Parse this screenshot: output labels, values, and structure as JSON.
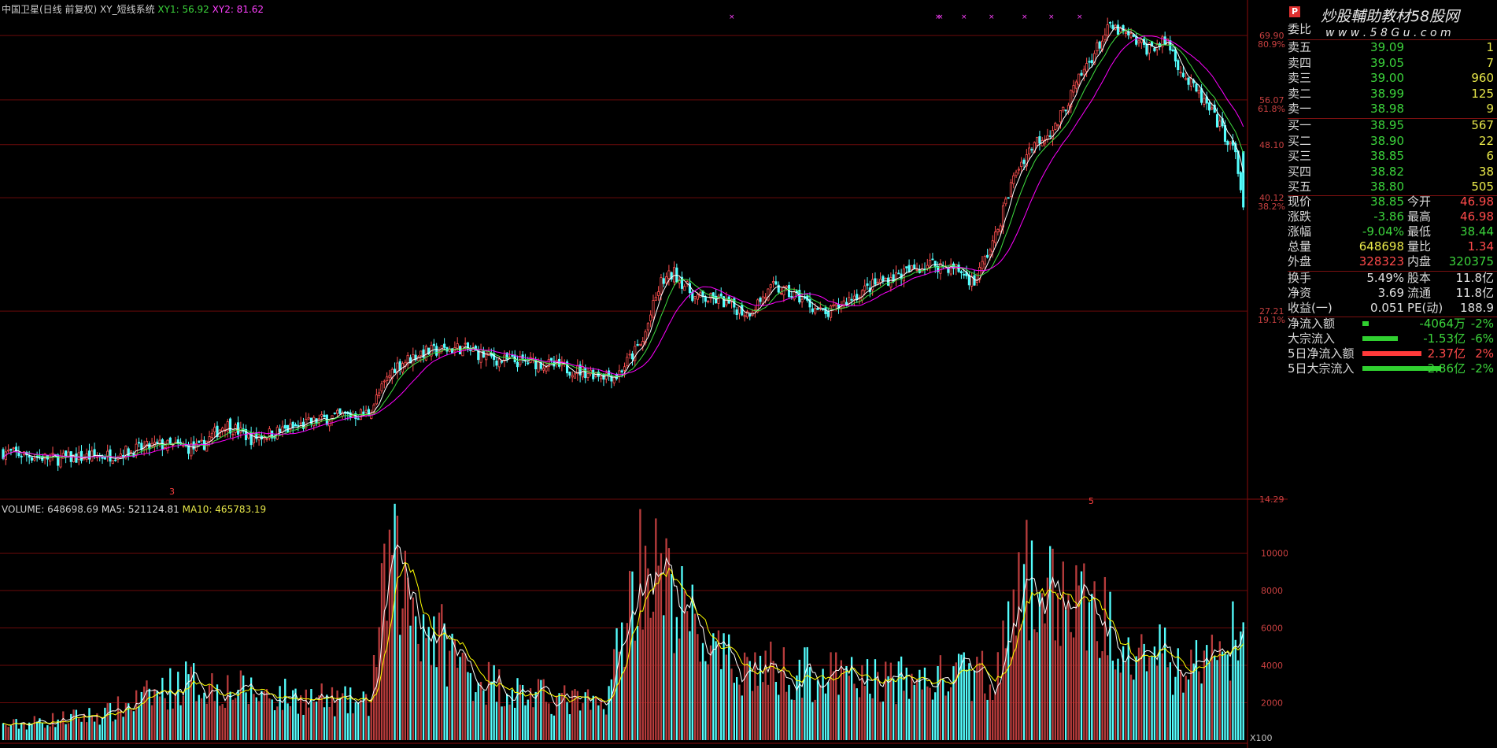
{
  "header": {
    "stock_name": "中国卫星(日线 前复权)",
    "indicator": "XY_短线系统",
    "xy1_label": "XY1: 56.92",
    "xy2_label": "XY2: 81.62"
  },
  "volume_header": {
    "title": "VOLUME: 648698.69",
    "ma5": "MA5: 521124.81",
    "ma10": "MA10: 465783.19"
  },
  "price_axis": [
    {
      "value": "69.90",
      "pct": "80.9%"
    },
    {
      "value": "56.07",
      "pct": "61.8%"
    },
    {
      "value": "48.10",
      "pct": ""
    },
    {
      "value": "40.12",
      "pct": "38.2%"
    },
    {
      "value": "27.21",
      "pct": "19.1%"
    },
    {
      "value": "14.29",
      "pct": ""
    }
  ],
  "volume_axis": [
    "10000",
    "8000",
    "6000",
    "4000",
    "2000"
  ],
  "volume_unit": "X100",
  "markers": {
    "bottom_left": "3",
    "bottom_right": "5"
  },
  "panel": {
    "logo": "P",
    "watermark": "炒股輔助教材58股网",
    "watermark_url": "w w w . 5 8 G u . c o m",
    "ratio_label": "委比",
    "asks": [
      {
        "label": "卖五",
        "price": "39.09",
        "vol": "1"
      },
      {
        "label": "卖四",
        "price": "39.05",
        "vol": "7"
      },
      {
        "label": "卖三",
        "price": "39.00",
        "vol": "960"
      },
      {
        "label": "卖二",
        "price": "38.99",
        "vol": "125"
      },
      {
        "label": "卖一",
        "price": "38.98",
        "vol": "9"
      }
    ],
    "bids": [
      {
        "label": "买一",
        "price": "38.95",
        "vol": "567"
      },
      {
        "label": "买二",
        "price": "38.90",
        "vol": "22"
      },
      {
        "label": "买三",
        "price": "38.85",
        "vol": "6"
      },
      {
        "label": "买四",
        "price": "38.82",
        "vol": "38"
      },
      {
        "label": "买五",
        "price": "38.80",
        "vol": "505"
      }
    ],
    "quote": [
      {
        "l1": "现价",
        "v1": "38.85",
        "c1": "green",
        "l2": "今开",
        "v2": "46.98",
        "c2": "red"
      },
      {
        "l1": "涨跌",
        "v1": "-3.86",
        "c1": "green",
        "l2": "最高",
        "v2": "46.98",
        "c2": "red"
      },
      {
        "l1": "涨幅",
        "v1": "-9.04%",
        "c1": "green",
        "l2": "最低",
        "v2": "38.44",
        "c2": "green"
      },
      {
        "l1": "总量",
        "v1": "648698",
        "c1": "yellow",
        "l2": "量比",
        "v2": "1.34",
        "c2": "red"
      },
      {
        "l1": "外盘",
        "v1": "328323",
        "c1": "red",
        "l2": "内盘",
        "v2": "320375",
        "c2": "green"
      }
    ],
    "fund": [
      {
        "l1": "换手",
        "v1": "5.49%",
        "l2": "股本",
        "v2": "11.8亿"
      },
      {
        "l1": "净资",
        "v1": "3.69",
        "l2": "流通",
        "v2": "11.8亿"
      },
      {
        "l1": "收益(一)",
        "v1": "0.051",
        "l2": "PE(动)",
        "v2": "188.9"
      }
    ],
    "flows": [
      {
        "label": "净流入额",
        "value": "-4064万",
        "pct": "-2%",
        "color": "green",
        "bar": 0.08
      },
      {
        "label": "大宗流入",
        "value": "-1.53亿",
        "pct": "-6%",
        "color": "green",
        "bar": 0.45
      },
      {
        "label": "5日净流入额",
        "value": "2.37亿",
        "pct": "2%",
        "color": "red",
        "bar": 0.75
      },
      {
        "label": "5日大宗流入",
        "value": "-2.86亿",
        "pct": "-2%",
        "color": "green",
        "bar": 1.0
      }
    ]
  },
  "colors": {
    "up": "#ff5050",
    "up_vol": "#b83c3c",
    "down": "#54ffff",
    "ma1": "#ffffff",
    "ma2": "#ffff00",
    "ma3": "#ff00ff",
    "grid": "#6a0a0a",
    "axis": "#8b0d0d"
  },
  "chart_data": {
    "type": "candlestick",
    "price_range": [
      14.29,
      74.0
    ],
    "volume_range": [
      0,
      12000
    ],
    "anchors": [
      [
        0,
        16.8
      ],
      [
        20,
        16.4
      ],
      [
        40,
        16.6
      ],
      [
        60,
        17.2
      ],
      [
        75,
        17.0
      ],
      [
        85,
        18.5
      ],
      [
        95,
        17.6
      ],
      [
        110,
        18.2
      ],
      [
        125,
        18.9
      ],
      [
        140,
        19.2
      ],
      [
        150,
        22.5
      ],
      [
        160,
        23.6
      ],
      [
        175,
        24.0
      ],
      [
        190,
        23.0
      ],
      [
        205,
        22.8
      ],
      [
        220,
        22.2
      ],
      [
        235,
        21.8
      ],
      [
        245,
        24.5
      ],
      [
        252,
        30.0
      ],
      [
        257,
        31.0
      ],
      [
        265,
        28.5
      ],
      [
        275,
        28.2
      ],
      [
        285,
        27.0
      ],
      [
        295,
        29.5
      ],
      [
        305,
        28.5
      ],
      [
        315,
        26.8
      ],
      [
        325,
        28.5
      ],
      [
        335,
        30.0
      ],
      [
        345,
        31.0
      ],
      [
        355,
        32.0
      ],
      [
        365,
        31.5
      ],
      [
        372,
        30.0
      ],
      [
        380,
        35.0
      ],
      [
        388,
        44.0
      ],
      [
        395,
        48.5
      ],
      [
        403,
        51.0
      ],
      [
        410,
        58.0
      ],
      [
        418,
        66.0
      ],
      [
        424,
        72.0
      ],
      [
        430,
        70.0
      ],
      [
        438,
        67.0
      ],
      [
        446,
        68.5
      ],
      [
        452,
        61.0
      ],
      [
        458,
        57.0
      ],
      [
        465,
        52.0
      ],
      [
        472,
        46.5
      ],
      [
        475,
        38.85
      ]
    ],
    "volume_anchors": [
      [
        0,
        800
      ],
      [
        40,
        1500
      ],
      [
        70,
        3300
      ],
      [
        100,
        2600
      ],
      [
        140,
        2000
      ],
      [
        148,
        10200
      ],
      [
        160,
        6800
      ],
      [
        180,
        3600
      ],
      [
        200,
        2600
      ],
      [
        230,
        1900
      ],
      [
        245,
        10500
      ],
      [
        258,
        7600
      ],
      [
        275,
        4300
      ],
      [
        300,
        3900
      ],
      [
        320,
        3500
      ],
      [
        350,
        3300
      ],
      [
        380,
        3800
      ],
      [
        392,
        8800
      ],
      [
        410,
        7700
      ],
      [
        430,
        6200
      ],
      [
        450,
        3900
      ],
      [
        465,
        4700
      ],
      [
        475,
        6300
      ]
    ],
    "ma_lengths": [
      5,
      10,
      20
    ],
    "volume_ma_lengths": [
      5,
      10
    ],
    "last_close": 38.85,
    "last_open": 46.98,
    "last_high": 46.98,
    "last_low": 38.44
  }
}
